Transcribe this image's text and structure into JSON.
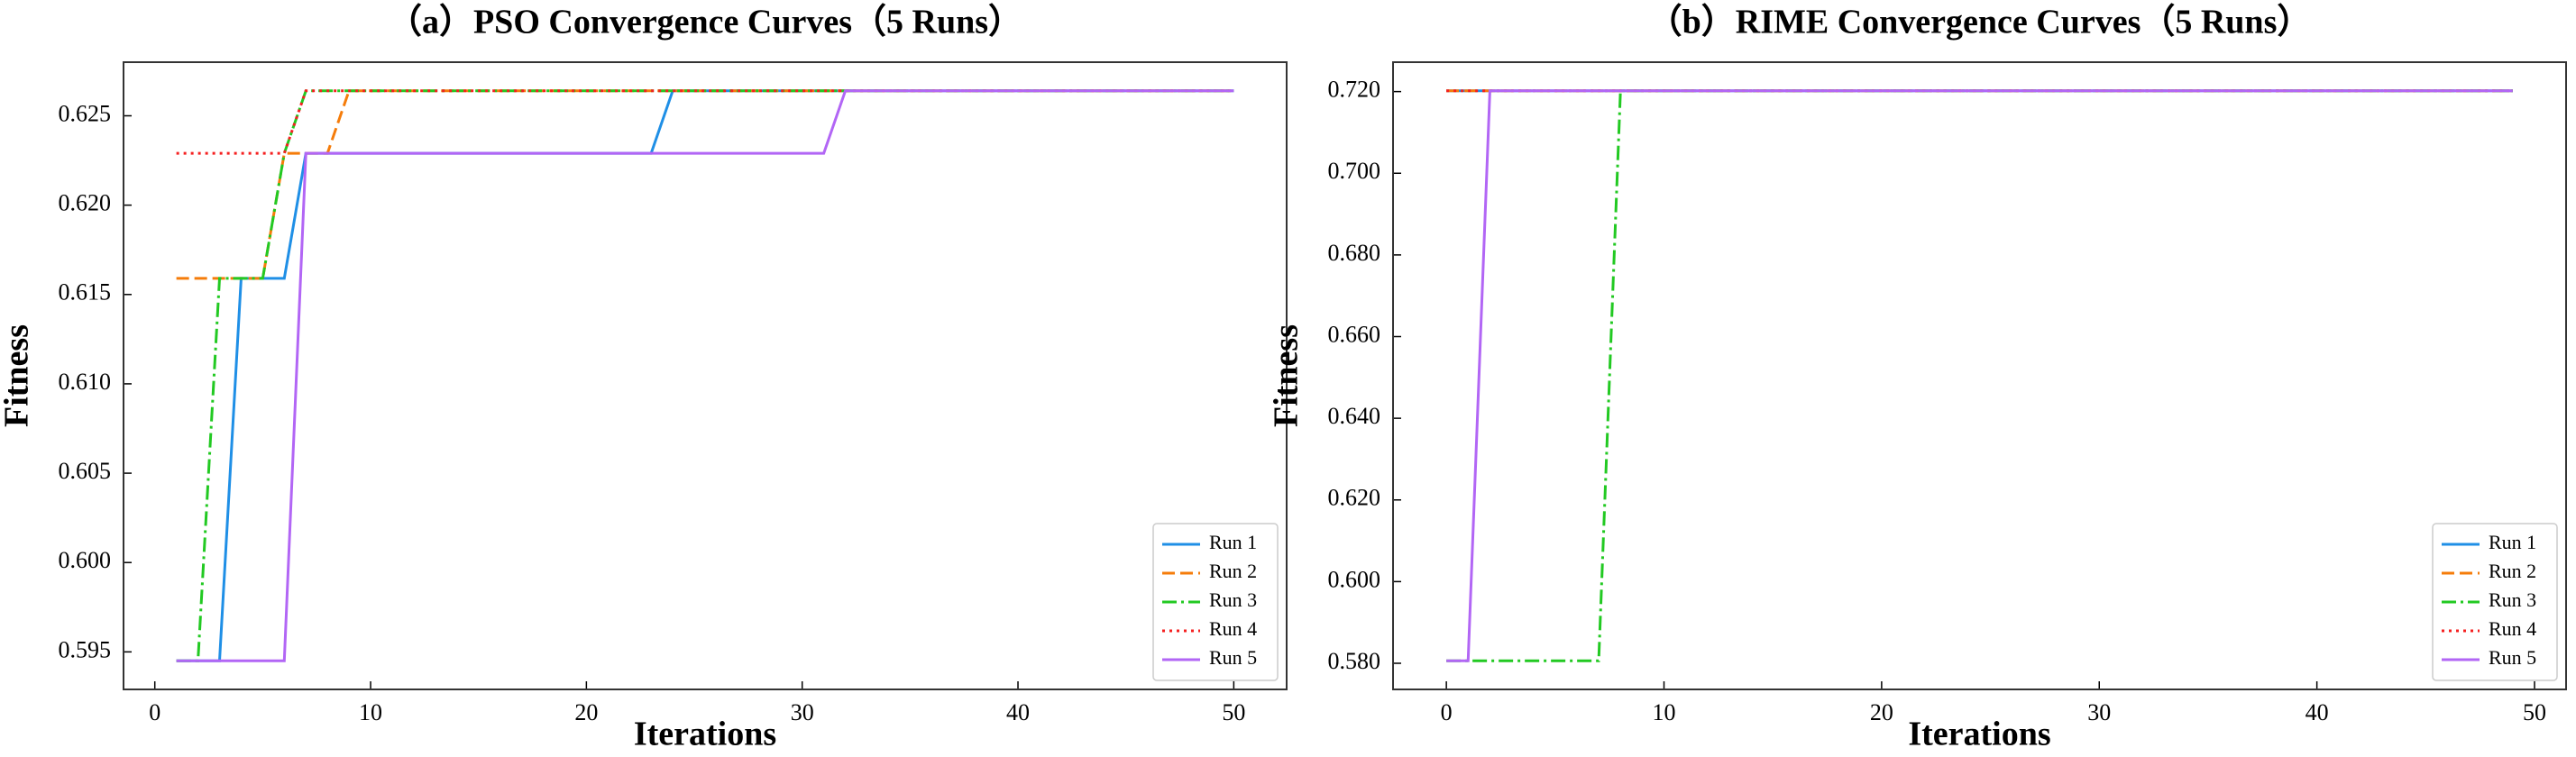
{
  "chart_data": [
    {
      "type": "line",
      "title": "（a）PSO Convergence Curves（5 Runs）",
      "x_label": "Iterations",
      "y_label": "Fitness",
      "x": [
        1,
        2,
        3,
        4,
        5,
        6,
        7,
        8,
        9,
        10,
        11,
        12,
        13,
        14,
        15,
        16,
        17,
        18,
        19,
        20,
        21,
        22,
        23,
        24,
        25,
        26,
        27,
        28,
        29,
        30,
        31,
        32,
        33,
        34,
        35,
        36,
        37,
        38,
        39,
        40,
        41,
        42,
        43,
        44,
        45,
        46,
        47,
        48,
        49,
        50
      ],
      "xlim": [
        -1.45,
        52.45
      ],
      "xticks": [
        0,
        10,
        20,
        30,
        40,
        50
      ],
      "ylim": [
        0.5929,
        0.628
      ],
      "yticks": [
        0.595,
        {
          "value": 0.6,
          "label": "0.600"
        },
        0.605,
        {
          "value": 0.61,
          "label": "0.610"
        },
        0.615,
        {
          "value": 0.62,
          "label": "0.620"
        },
        0.625
      ],
      "legend": "lower right",
      "series": [
        {
          "name": "Run 1",
          "color": "#1f8fe6",
          "style": "solid",
          "values": [
            0.5945,
            0.5945,
            0.5945,
            0.6159,
            0.6159,
            0.6159,
            0.6229,
            0.6229,
            0.6229,
            0.6229,
            0.6229,
            0.6229,
            0.6229,
            0.6229,
            0.6229,
            0.6229,
            0.6229,
            0.6229,
            0.6229,
            0.6229,
            0.6229,
            0.6229,
            0.6229,
            0.6264,
            0.6264,
            0.6264,
            0.6264,
            0.6264,
            0.6264,
            0.6264,
            0.6264,
            0.6264,
            0.6264,
            0.6264,
            0.6264,
            0.6264,
            0.6264,
            0.6264,
            0.6264,
            0.6264,
            0.6264,
            0.6264,
            0.6264,
            0.6264,
            0.6264,
            0.6264,
            0.6264,
            0.6264,
            0.6264,
            0.6264
          ]
        },
        {
          "name": "Run 2",
          "color": "#f57c0a",
          "style": "dashed",
          "values": [
            0.6159,
            0.6159,
            0.6159,
            0.6159,
            0.6159,
            0.6229,
            0.6229,
            0.6229,
            0.6264,
            0.6264,
            0.6264,
            0.6264,
            0.6264,
            0.6264,
            0.6264,
            0.6264,
            0.6264,
            0.6264,
            0.6264,
            0.6264,
            0.6264,
            0.6264,
            0.6264,
            0.6264,
            0.6264,
            0.6264,
            0.6264,
            0.6264,
            0.6264,
            0.6264,
            0.6264,
            0.6264,
            0.6264,
            0.6264,
            0.6264,
            0.6264,
            0.6264,
            0.6264,
            0.6264,
            0.6264,
            0.6264,
            0.6264,
            0.6264,
            0.6264,
            0.6264,
            0.6264,
            0.6264,
            0.6264,
            0.6264,
            0.6264
          ]
        },
        {
          "name": "Run 3",
          "color": "#22c922",
          "style": "dashdot",
          "values": [
            0.5945,
            0.5945,
            0.6159,
            0.6159,
            0.6159,
            0.6229,
            0.6264,
            0.6264,
            0.6264,
            0.6264,
            0.6264,
            0.6264,
            0.6264,
            0.6264,
            0.6264,
            0.6264,
            0.6264,
            0.6264,
            0.6264,
            0.6264,
            0.6264,
            0.6264,
            0.6264,
            0.6264,
            0.6264,
            0.6264,
            0.6264,
            0.6264,
            0.6264,
            0.6264,
            0.6264,
            0.6264,
            0.6264,
            0.6264,
            0.6264,
            0.6264,
            0.6264,
            0.6264,
            0.6264,
            0.6264,
            0.6264,
            0.6264,
            0.6264,
            0.6264,
            0.6264,
            0.6264,
            0.6264,
            0.6264,
            0.6264,
            0.6264
          ]
        },
        {
          "name": "Run 4",
          "color": "#f52020",
          "style": "dotted",
          "values": [
            0.6229,
            0.6229,
            0.6229,
            0.6229,
            0.6229,
            0.6229,
            0.6264,
            0.6264,
            0.6264,
            0.6264,
            0.6264,
            0.6264,
            0.6264,
            0.6264,
            0.6264,
            0.6264,
            0.6264,
            0.6264,
            0.6264,
            0.6264,
            0.6264,
            0.6264,
            0.6264,
            0.6264,
            0.6264,
            0.6264,
            0.6264,
            0.6264,
            0.6264,
            0.6264,
            0.6264,
            0.6264,
            0.6264,
            0.6264,
            0.6264,
            0.6264,
            0.6264,
            0.6264,
            0.6264,
            0.6264,
            0.6264,
            0.6264,
            0.6264,
            0.6264,
            0.6264,
            0.6264,
            0.6264,
            0.6264,
            0.6264,
            0.6264
          ]
        },
        {
          "name": "Run 5",
          "color": "#b266f5",
          "style": "solid",
          "values": [
            0.5945,
            0.5945,
            0.5945,
            0.5945,
            0.5945,
            0.5945,
            0.6229,
            0.6229,
            0.6229,
            0.6229,
            0.6229,
            0.6229,
            0.6229,
            0.6229,
            0.6229,
            0.6229,
            0.6229,
            0.6229,
            0.6229,
            0.6229,
            0.6229,
            0.6229,
            0.6229,
            0.6229,
            0.6229,
            0.6229,
            0.6229,
            0.6229,
            0.6229,
            0.6229,
            0.6229,
            0.6264,
            0.6264,
            0.6264,
            0.6264,
            0.6264,
            0.6264,
            0.6264,
            0.6264,
            0.6264,
            0.6264,
            0.6264,
            0.6264,
            0.6264,
            0.6264,
            0.6264,
            0.6264,
            0.6264,
            0.6264,
            0.6264
          ]
        }
      ]
    },
    {
      "type": "line",
      "title": "（b）RIME Convergence Curves（5 Runs）",
      "x_label": "Iterations",
      "y_label": "Fitness",
      "x": [
        0,
        1,
        2,
        3,
        4,
        5,
        6,
        7,
        8,
        9,
        10,
        11,
        12,
        13,
        14,
        15,
        16,
        17,
        18,
        19,
        20,
        21,
        22,
        23,
        24,
        25,
        26,
        27,
        28,
        29,
        30,
        31,
        32,
        33,
        34,
        35,
        36,
        37,
        38,
        39,
        40,
        41,
        42,
        43,
        44,
        45,
        46,
        47,
        48,
        49
      ],
      "xlim": [
        -2.45,
        51.45
      ],
      "xticks": [
        0,
        10,
        20,
        30,
        40,
        50
      ],
      "ylim": [
        0.5736,
        0.7272
      ],
      "yticks": [
        {
          "value": 0.58,
          "label": "0.580"
        },
        {
          "value": 0.6,
          "label": "0.600"
        },
        {
          "value": 0.62,
          "label": "0.620"
        },
        {
          "value": 0.64,
          "label": "0.640"
        },
        {
          "value": 0.66,
          "label": "0.660"
        },
        {
          "value": 0.68,
          "label": "0.680"
        },
        {
          "value": 0.7,
          "label": "0.700"
        },
        {
          "value": 0.72,
          "label": "0.720"
        }
      ],
      "legend": "lower right",
      "series": [
        {
          "name": "Run 1",
          "color": "#1f8fe6",
          "style": "solid",
          "values": [
            0.7202,
            0.7202,
            0.7202,
            0.7202,
            0.7202,
            0.7202,
            0.7202,
            0.7202,
            0.7202,
            0.7202,
            0.7202,
            0.7202,
            0.7202,
            0.7202,
            0.7202,
            0.7202,
            0.7202,
            0.7202,
            0.7202,
            0.7202,
            0.7202,
            0.7202,
            0.7202,
            0.7202,
            0.7202,
            0.7202,
            0.7202,
            0.7202,
            0.7202,
            0.7202,
            0.7202,
            0.7202,
            0.7202,
            0.7202,
            0.7202,
            0.7202,
            0.7202,
            0.7202,
            0.7202,
            0.7202,
            0.7202,
            0.7202,
            0.7202,
            0.7202,
            0.7202,
            0.7202,
            0.7202,
            0.7202,
            0.7202,
            0.7202
          ]
        },
        {
          "name": "Run 2",
          "color": "#f57c0a",
          "style": "dashed",
          "values": [
            0.7202,
            0.7202,
            0.7202,
            0.7202,
            0.7202,
            0.7202,
            0.7202,
            0.7202,
            0.7202,
            0.7202,
            0.7202,
            0.7202,
            0.7202,
            0.7202,
            0.7202,
            0.7202,
            0.7202,
            0.7202,
            0.7202,
            0.7202,
            0.7202,
            0.7202,
            0.7202,
            0.7202,
            0.7202,
            0.7202,
            0.7202,
            0.7202,
            0.7202,
            0.7202,
            0.7202,
            0.7202,
            0.7202,
            0.7202,
            0.7202,
            0.7202,
            0.7202,
            0.7202,
            0.7202,
            0.7202,
            0.7202,
            0.7202,
            0.7202,
            0.7202,
            0.7202,
            0.7202,
            0.7202,
            0.7202,
            0.7202,
            0.7202
          ]
        },
        {
          "name": "Run 3",
          "color": "#22c922",
          "style": "dashdot",
          "values": [
            0.5806,
            0.5806,
            0.5806,
            0.5806,
            0.5806,
            0.5806,
            0.5806,
            0.5806,
            0.7202,
            0.7202,
            0.7202,
            0.7202,
            0.7202,
            0.7202,
            0.7202,
            0.7202,
            0.7202,
            0.7202,
            0.7202,
            0.7202,
            0.7202,
            0.7202,
            0.7202,
            0.7202,
            0.7202,
            0.7202,
            0.7202,
            0.7202,
            0.7202,
            0.7202,
            0.7202,
            0.7202,
            0.7202,
            0.7202,
            0.7202,
            0.7202,
            0.7202,
            0.7202,
            0.7202,
            0.7202,
            0.7202,
            0.7202,
            0.7202,
            0.7202,
            0.7202,
            0.7202,
            0.7202,
            0.7202,
            0.7202,
            0.7202
          ]
        },
        {
          "name": "Run 4",
          "color": "#f52020",
          "style": "dotted",
          "values": [
            0.7202,
            0.7202,
            0.7202,
            0.7202,
            0.7202,
            0.7202,
            0.7202,
            0.7202,
            0.7202,
            0.7202,
            0.7202,
            0.7202,
            0.7202,
            0.7202,
            0.7202,
            0.7202,
            0.7202,
            0.7202,
            0.7202,
            0.7202,
            0.7202,
            0.7202,
            0.7202,
            0.7202,
            0.7202,
            0.7202,
            0.7202,
            0.7202,
            0.7202,
            0.7202,
            0.7202,
            0.7202,
            0.7202,
            0.7202,
            0.7202,
            0.7202,
            0.7202,
            0.7202,
            0.7202,
            0.7202,
            0.7202,
            0.7202,
            0.7202,
            0.7202,
            0.7202,
            0.7202,
            0.7202,
            0.7202,
            0.7202,
            0.7202
          ]
        },
        {
          "name": "Run 5",
          "color": "#b266f5",
          "style": "solid",
          "values": [
            0.5806,
            0.5806,
            0.7202,
            0.7202,
            0.7202,
            0.7202,
            0.7202,
            0.7202,
            0.7202,
            0.7202,
            0.7202,
            0.7202,
            0.7202,
            0.7202,
            0.7202,
            0.7202,
            0.7202,
            0.7202,
            0.7202,
            0.7202,
            0.7202,
            0.7202,
            0.7202,
            0.7202,
            0.7202,
            0.7202,
            0.7202,
            0.7202,
            0.7202,
            0.7202,
            0.7202,
            0.7202,
            0.7202,
            0.7202,
            0.7202,
            0.7202,
            0.7202,
            0.7202,
            0.7202,
            0.7202,
            0.7202,
            0.7202,
            0.7202,
            0.7202,
            0.7202,
            0.7202,
            0.7202,
            0.7202,
            0.7202,
            0.7202
          ]
        }
      ]
    }
  ]
}
